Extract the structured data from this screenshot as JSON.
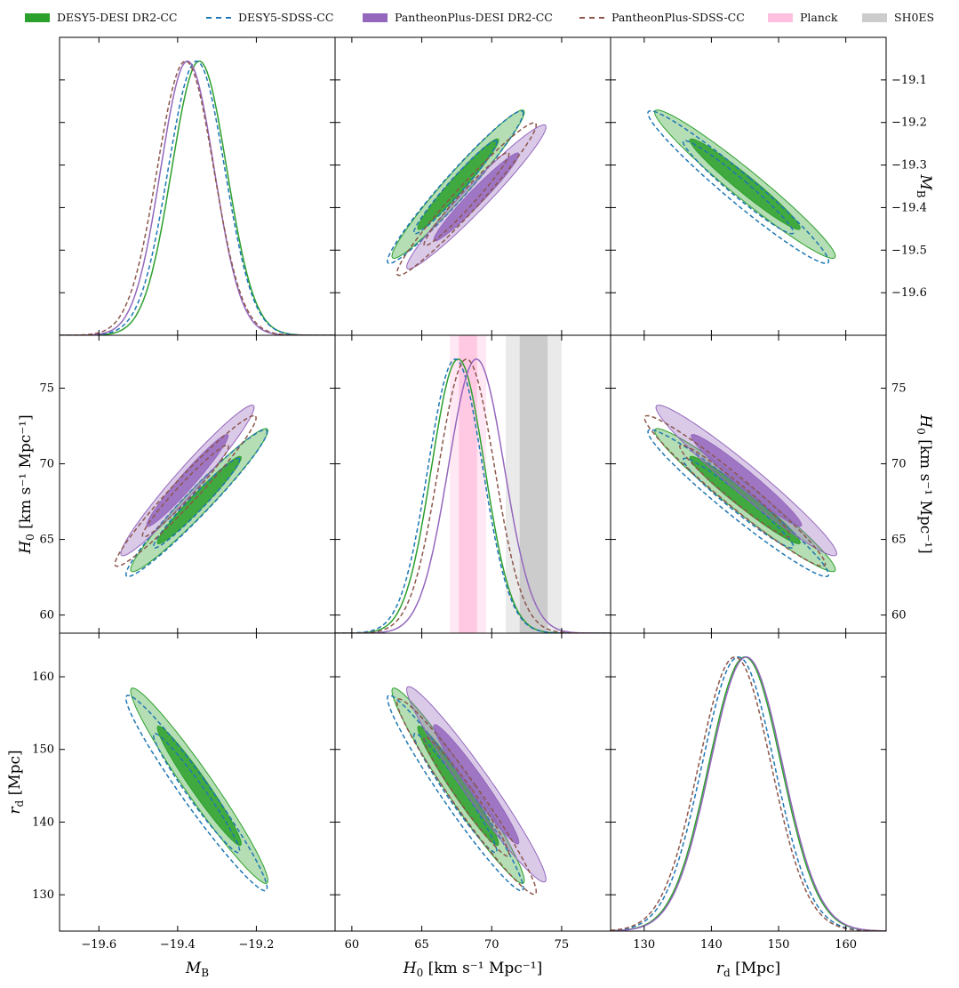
{
  "legend": [
    {
      "label": "DESY5-DESI DR2-CC",
      "style": "fill",
      "color": "#2ca02c"
    },
    {
      "label": "DESY5-SDSS-CC",
      "style": "dash",
      "color": "#1f77b4"
    },
    {
      "label": "PantheonPlus-DESI DR2-CC",
      "style": "fill",
      "color": "#9467bd"
    },
    {
      "label": "PantheonPlus-SDSS-CC",
      "style": "dash",
      "color": "#8c564b"
    },
    {
      "label": "Planck",
      "style": "fill",
      "color": "#ffc0e0"
    },
    {
      "label": "SH0ES",
      "style": "fill",
      "color": "#cccccc"
    }
  ],
  "chart_data": {
    "type": "corner",
    "parameters": [
      {
        "key": "MB",
        "label_main": "M",
        "label_sub": "B",
        "unit": "",
        "range": [
          -19.7,
          -19.0
        ],
        "ticks": [
          -19.6,
          -19.4,
          -19.2
        ],
        "tick_labels": [
          "−19.6",
          "−19.4",
          "−19.2"
        ],
        "side_ticks": [
          -19.1,
          -19.2,
          -19.3,
          -19.4,
          -19.5,
          -19.6
        ],
        "side_tick_labels": [
          "−19.1",
          "−19.2",
          "−19.3",
          "−19.4",
          "−19.5",
          "−19.6"
        ]
      },
      {
        "key": "H0",
        "label_main": "H",
        "label_sub": "0",
        "unit": "[km s⁻¹ Mpc⁻¹]",
        "range": [
          58.8,
          78.5
        ],
        "ticks": [
          60,
          65,
          70,
          75
        ],
        "tick_labels": [
          "60",
          "65",
          "70",
          "75"
        ]
      },
      {
        "key": "rd",
        "label_main": "r",
        "label_sub": "d",
        "unit": "[Mpc]",
        "range": [
          125,
          166
        ],
        "ticks": [
          130,
          140,
          150,
          160
        ],
        "tick_labels": [
          "130",
          "140",
          "150",
          "160"
        ]
      }
    ],
    "series": [
      {
        "name": "DESY5-DESI DR2-CC",
        "color": "#2ca02c",
        "style": "filled",
        "MB": {
          "mean": -19.345,
          "sd": 0.07
        },
        "H0": {
          "mean": 67.6,
          "sd": 1.9
        },
        "rd": {
          "mean": 145.0,
          "sd": 5.4
        },
        "corr": {
          "MB_H0": 0.97,
          "MB_rd": -0.97,
          "H0_rd": -0.97
        }
      },
      {
        "name": "DESY5-SDSS-CC",
        "color": "#1f77b4",
        "style": "dashed",
        "MB": {
          "mean": -19.352,
          "sd": 0.072
        },
        "H0": {
          "mean": 67.4,
          "sd": 1.95
        },
        "rd": {
          "mean": 144.0,
          "sd": 5.4
        },
        "corr": {
          "MB_H0": 0.97,
          "MB_rd": -0.97,
          "H0_rd": -0.97
        }
      },
      {
        "name": "PantheonPlus-DESI DR2-CC",
        "color": "#9467bd",
        "style": "filled",
        "MB": {
          "mean": -19.375,
          "sd": 0.068
        },
        "H0": {
          "mean": 68.9,
          "sd": 2.0
        },
        "rd": {
          "mean": 145.2,
          "sd": 5.4
        },
        "corr": {
          "MB_H0": 0.97,
          "MB_rd": null,
          "H0_rd": -0.97
        }
      },
      {
        "name": "PantheonPlus-SDSS-CC",
        "color": "#8c564b",
        "style": "dashed",
        "MB": {
          "mean": -19.38,
          "sd": 0.072
        },
        "H0": {
          "mean": 68.2,
          "sd": 2.0
        },
        "rd": {
          "mean": 143.5,
          "sd": 5.4
        },
        "corr": {
          "MB_H0": 0.97,
          "MB_rd": null,
          "H0_rd": -0.97
        }
      }
    ],
    "bands": [
      {
        "name": "Planck",
        "parameter": "H0",
        "mean": 68.3,
        "sd": 0.65,
        "color": "#ff80c0"
      },
      {
        "name": "SH0ES",
        "parameter": "H0",
        "mean": 73.0,
        "sd": 1.0,
        "color": "#888888"
      }
    ]
  }
}
